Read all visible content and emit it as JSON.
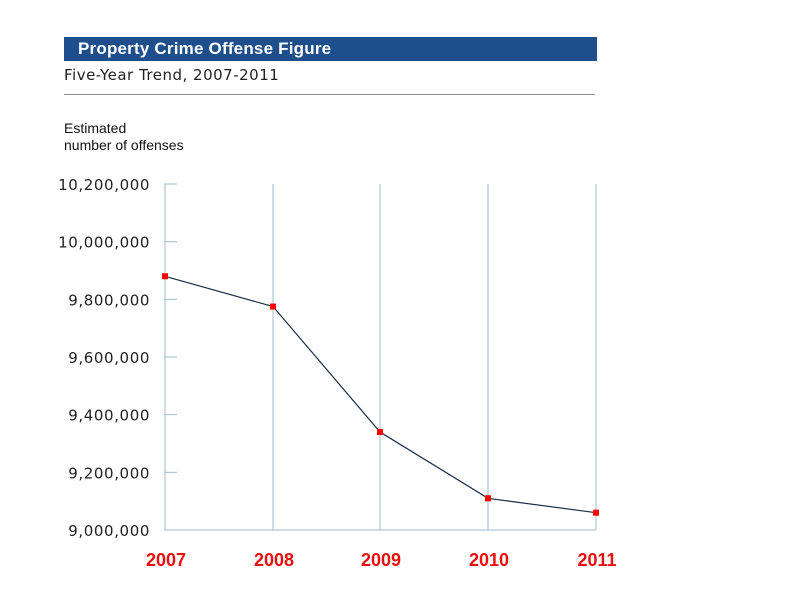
{
  "title": "Property Crime Offense Figure",
  "subtitle": "Five-Year Trend, 2007-2011",
  "colors": {
    "title_bg": "#1f4e8c",
    "line": "#1a2e4a",
    "marker": "#ff0000",
    "grid": "#9fbccc",
    "x_tick": "#e8100f"
  },
  "chart_data": {
    "type": "line",
    "title": "Property Crime Offense Figure",
    "subtitle": "Five-Year Trend, 2007-2011",
    "ylabel": "Estimated\nnumber of offenses",
    "xlabel": "",
    "categories": [
      "2007",
      "2008",
      "2009",
      "2010",
      "2011"
    ],
    "values": [
      9880000,
      9775000,
      9340000,
      9110000,
      9060000
    ],
    "ylim": [
      9000000,
      10200000
    ],
    "yticks": [
      9000000,
      9200000,
      9400000,
      9600000,
      9800000,
      10000000,
      10200000
    ],
    "ytick_labels": [
      "9,000,000",
      "9,200,000",
      "9,400,000",
      "9,600,000",
      "9,800,000",
      "10,000,000",
      "10,200,000"
    ],
    "grid": "vertical"
  }
}
